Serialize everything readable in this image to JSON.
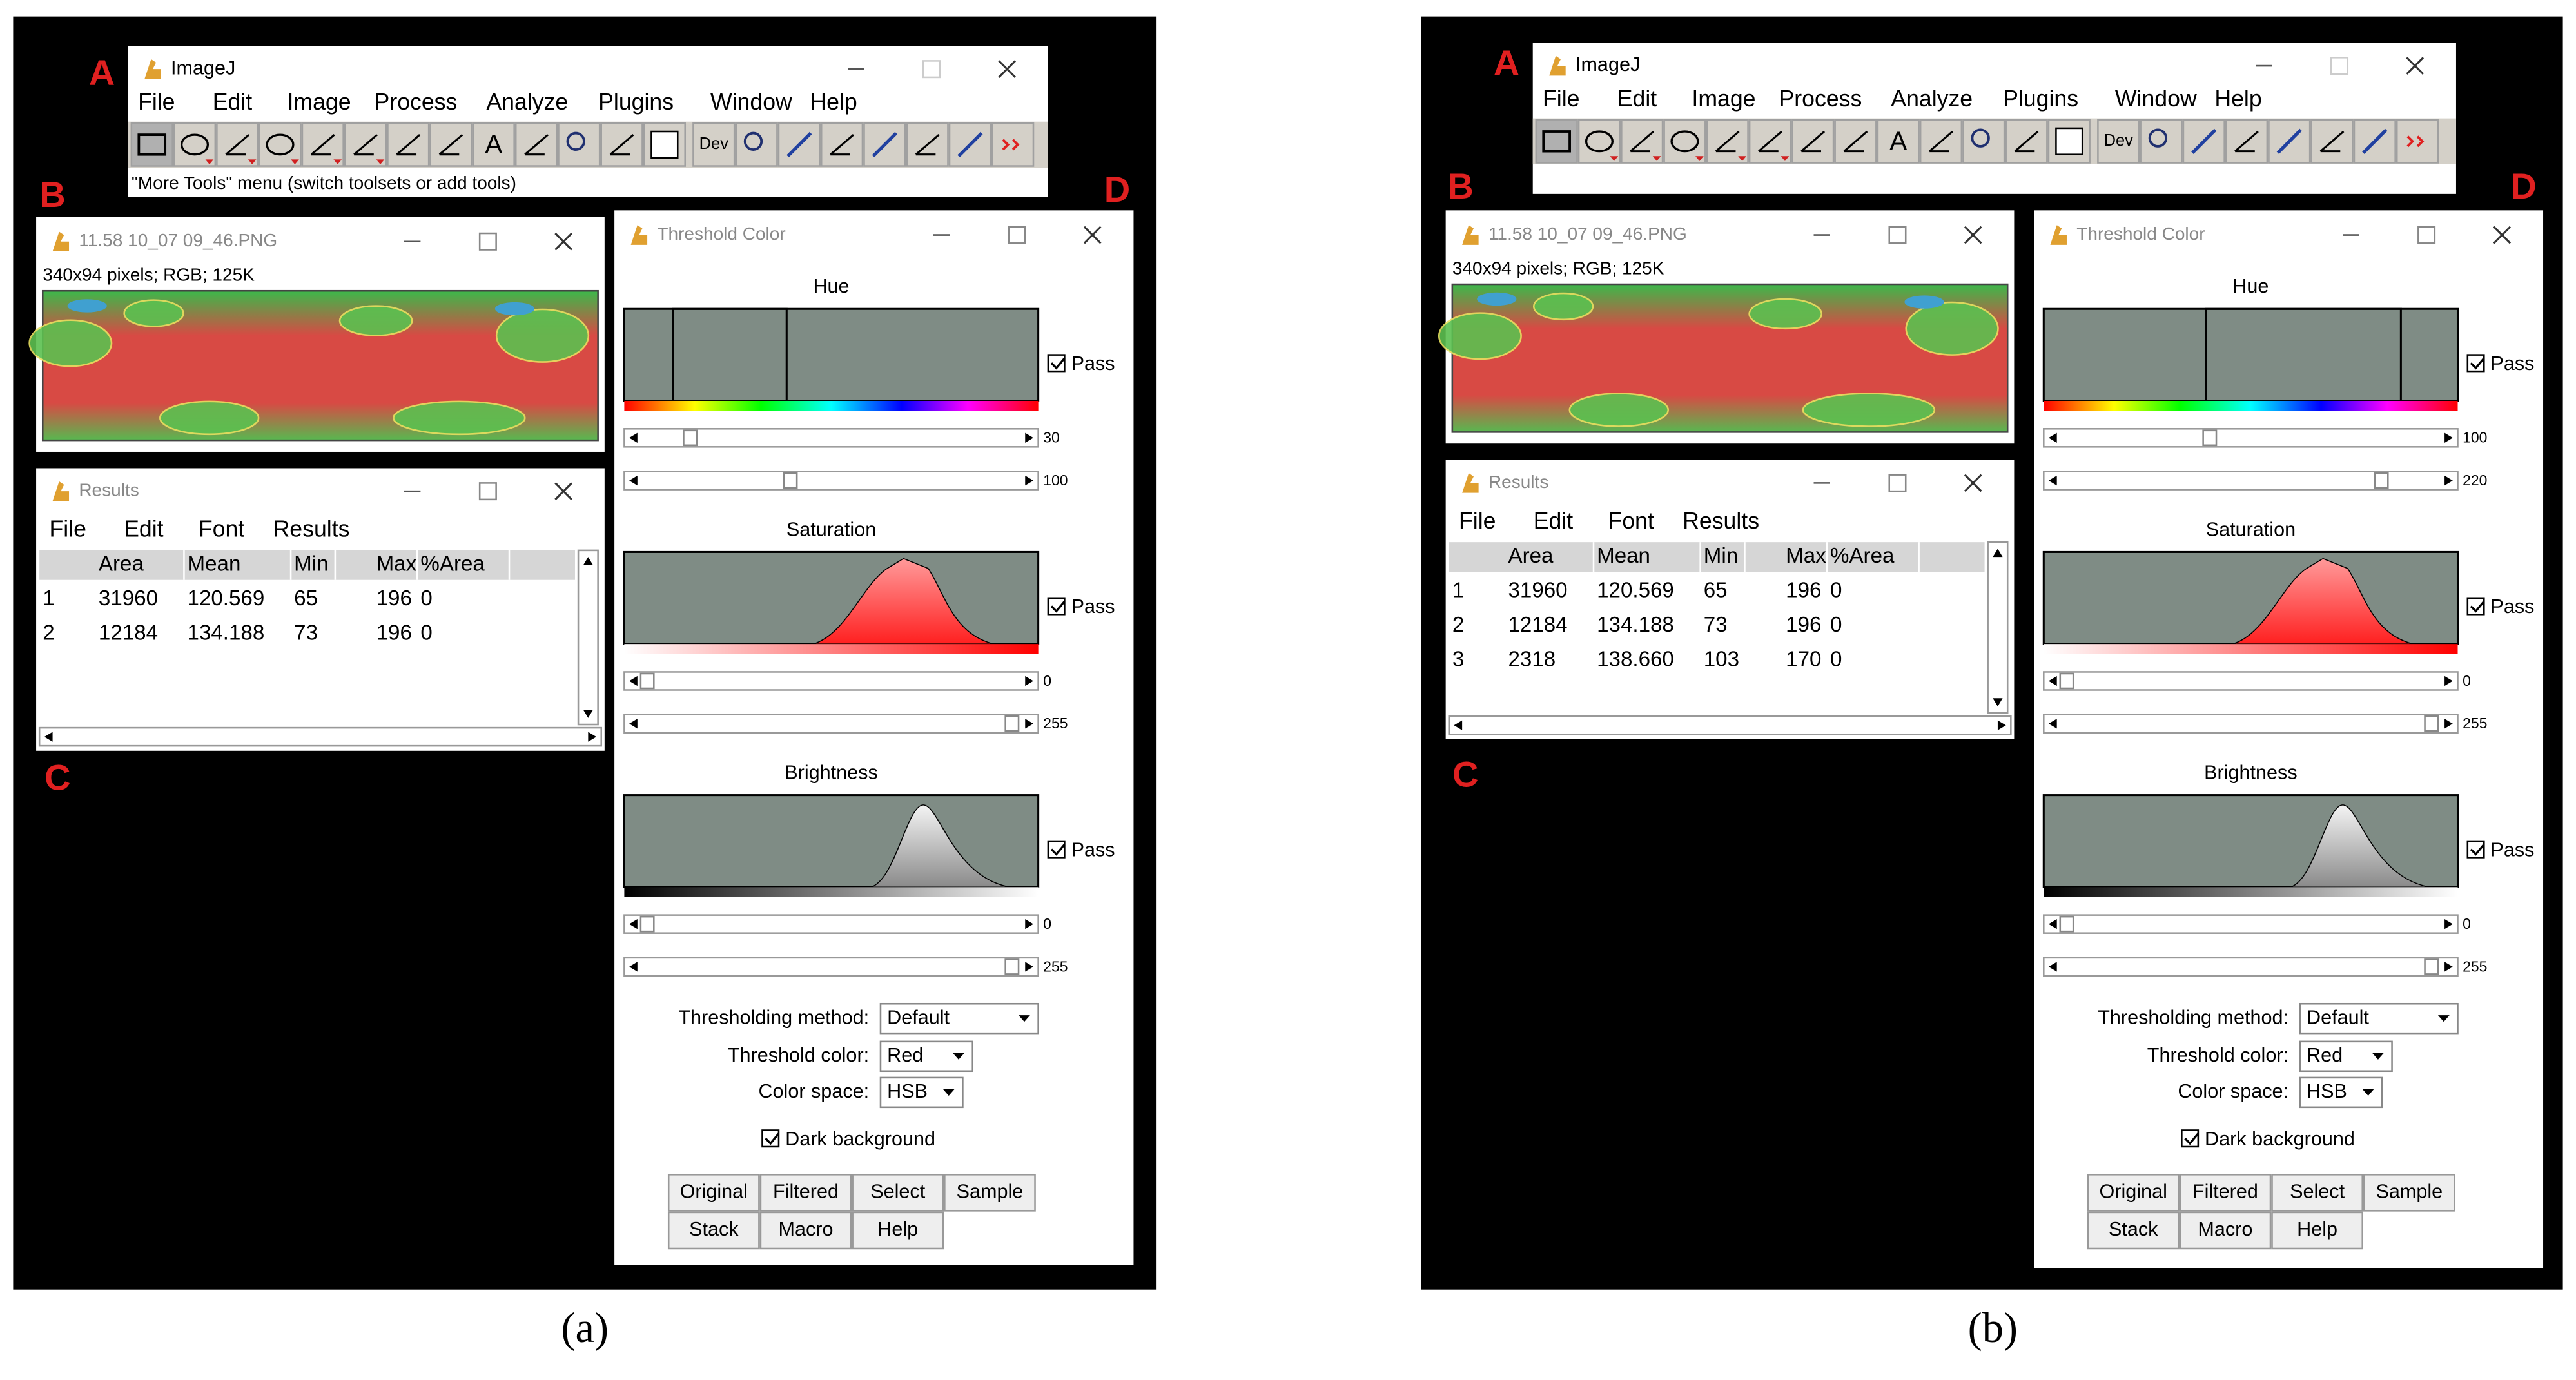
{
  "panels": [
    {
      "caption": "(a)",
      "markers": [
        "A",
        "B",
        "C",
        "D"
      ],
      "imagej": {
        "title": "ImageJ",
        "menu": [
          "File",
          "Edit",
          "Image",
          "Process",
          "Analyze",
          "Plugins",
          "Window",
          "Help"
        ],
        "text_tool": "A",
        "dev_tool": "Dev",
        "status": "\"More Tools\" menu (switch toolsets or add tools)"
      },
      "image": {
        "title": "11.58 10_07 09_46.PNG",
        "info": "340x94 pixels; RGB; 125K"
      },
      "results": {
        "title": "Results",
        "menu": [
          "File",
          "Edit",
          "Font",
          "Results"
        ],
        "columns": [
          "Area",
          "Mean",
          "Min",
          "Max",
          "%Area"
        ],
        "rows": [
          [
            "1",
            "31960",
            "120.569",
            "65",
            "196",
            "0"
          ],
          [
            "2",
            "12184",
            "134.188",
            "73",
            "196",
            "0"
          ]
        ]
      },
      "threshold": {
        "title": "Threshold Color",
        "channels": [
          {
            "label": "Hue",
            "pass": "Pass",
            "min": 30,
            "max": 100
          },
          {
            "label": "Saturation",
            "pass": "Pass",
            "min": 0,
            "max": 255
          },
          {
            "label": "Brightness",
            "pass": "Pass",
            "min": 0,
            "max": 255
          }
        ],
        "method_label": "Thresholding method:",
        "method": "Default",
        "color_label": "Threshold color:",
        "color": "Red",
        "space_label": "Color space:",
        "space": "HSB",
        "dark": "Dark background",
        "buttons": [
          "Original",
          "Filtered",
          "Select",
          "Sample",
          "Stack",
          "Macro",
          "Help"
        ]
      }
    },
    {
      "caption": "(b)",
      "markers": [
        "A",
        "B",
        "C",
        "D"
      ],
      "imagej": {
        "title": "ImageJ",
        "menu": [
          "File",
          "Edit",
          "Image",
          "Process",
          "Analyze",
          "Plugins",
          "Window",
          "Help"
        ],
        "text_tool": "A",
        "dev_tool": "Dev"
      },
      "image": {
        "title": "11.58 10_07 09_46.PNG",
        "info": "340x94 pixels; RGB; 125K"
      },
      "results": {
        "title": "Results",
        "menu": [
          "File",
          "Edit",
          "Font",
          "Results"
        ],
        "columns": [
          "Area",
          "Mean",
          "Min",
          "Max",
          "%Area"
        ],
        "rows": [
          [
            "1",
            "31960",
            "120.569",
            "65",
            "196",
            "0"
          ],
          [
            "2",
            "12184",
            "134.188",
            "73",
            "196",
            "0"
          ],
          [
            "3",
            "2318",
            "138.660",
            "103",
            "170",
            "0"
          ]
        ]
      },
      "threshold": {
        "title": "Threshold Color",
        "channels": [
          {
            "label": "Hue",
            "pass": "Pass",
            "min": 100,
            "max": 220
          },
          {
            "label": "Saturation",
            "pass": "Pass",
            "min": 0,
            "max": 255
          },
          {
            "label": "Brightness",
            "pass": "Pass",
            "min": 0,
            "max": 255
          }
        ],
        "method_label": "Thresholding method:",
        "method": "Default",
        "color_label": "Threshold color:",
        "color": "Red",
        "space_label": "Color space:",
        "space": "HSB",
        "dark": "Dark background",
        "buttons": [
          "Original",
          "Filtered",
          "Select",
          "Sample",
          "Stack",
          "Macro",
          "Help"
        ]
      }
    }
  ]
}
